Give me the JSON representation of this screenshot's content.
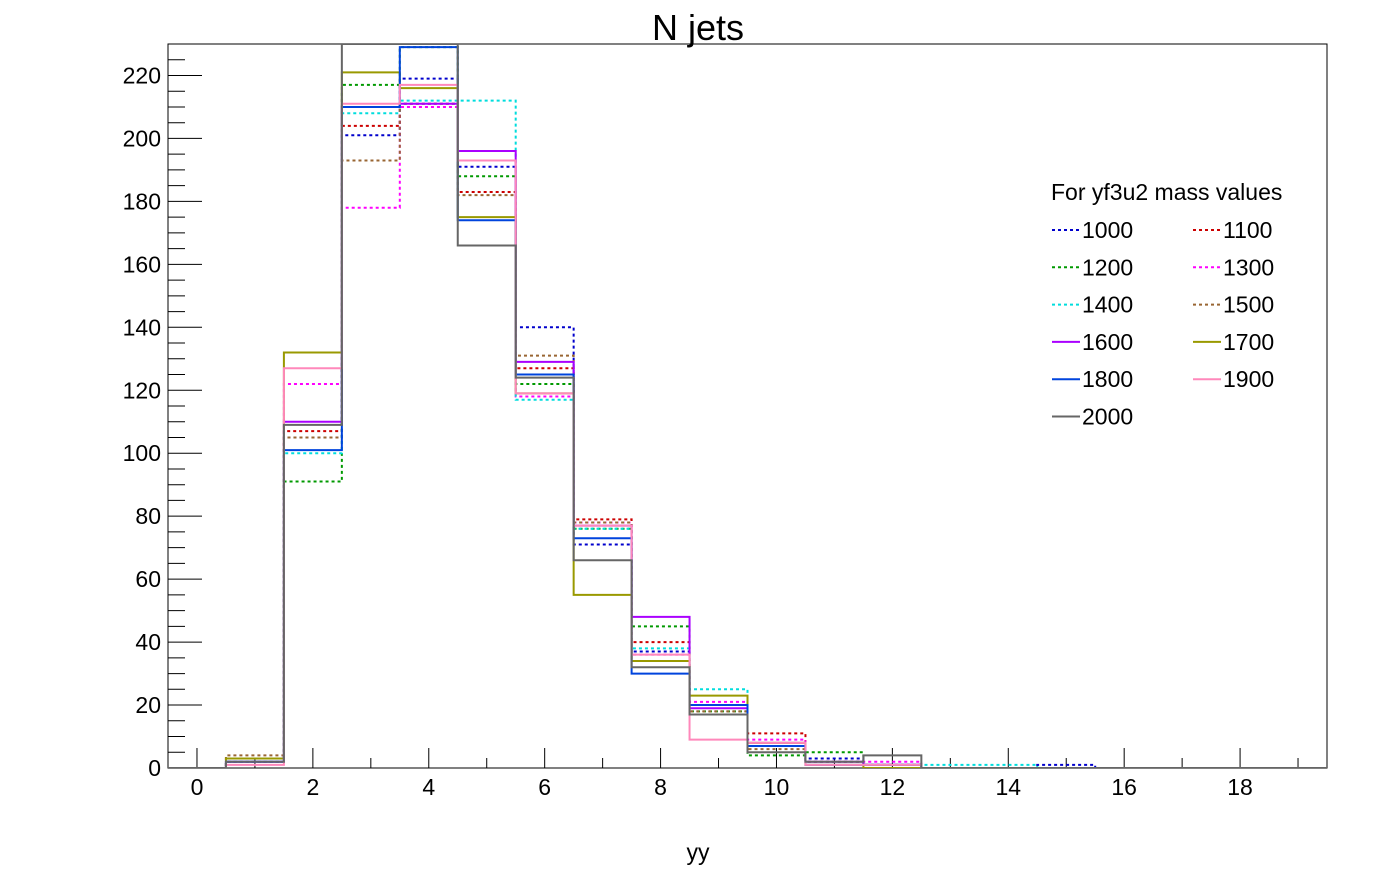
{
  "chart_data": {
    "type": "histogram-step",
    "title": "N jets",
    "xlabel": "yy",
    "ylabel": "",
    "xlim": [
      -0.5,
      19.5
    ],
    "ylim": [
      0,
      230
    ],
    "xticks": [
      0,
      2,
      4,
      6,
      8,
      10,
      12,
      14,
      16,
      18
    ],
    "yticks": [
      0,
      20,
      40,
      60,
      80,
      100,
      120,
      140,
      160,
      180,
      200,
      220
    ],
    "bin_centers": [
      0,
      1,
      2,
      3,
      4,
      5,
      6,
      7,
      8,
      9,
      10,
      11,
      12,
      13,
      14,
      15,
      16,
      17,
      18,
      19
    ],
    "legend": {
      "header": "For yf3u2 mass values",
      "placement": "top-right",
      "columns": 2
    },
    "series": [
      {
        "name": "1000",
        "color": "#0000cc",
        "dashed": true,
        "values": [
          0,
          2,
          105,
          201,
          219,
          191,
          140,
          71,
          37,
          20,
          7,
          3,
          1,
          0,
          0,
          1,
          0,
          0,
          0,
          0
        ]
      },
      {
        "name": "1100",
        "color": "#cc0000",
        "dashed": true,
        "values": [
          0,
          3,
          107,
          204,
          211,
          183,
          127,
          79,
          40,
          17,
          11,
          2,
          1,
          0,
          0,
          0,
          0,
          0,
          0,
          0
        ]
      },
      {
        "name": "1200",
        "color": "#009900",
        "dashed": true,
        "values": [
          0,
          2,
          91,
          217,
          229,
          188,
          122,
          76,
          45,
          18,
          4,
          5,
          1,
          0,
          0,
          0,
          0,
          0,
          0,
          0
        ]
      },
      {
        "name": "1300",
        "color": "#ff00ff",
        "dashed": true,
        "values": [
          0,
          2,
          122,
          178,
          210,
          193,
          118,
          78,
          36,
          21,
          9,
          2,
          2,
          0,
          0,
          0,
          0,
          0,
          0,
          0
        ]
      },
      {
        "name": "1400",
        "color": "#00dddd",
        "dashed": true,
        "values": [
          0,
          2,
          100,
          208,
          212,
          212,
          117,
          76,
          38,
          25,
          7,
          2,
          1,
          1,
          1,
          0,
          0,
          0,
          0,
          0
        ]
      },
      {
        "name": "1500",
        "color": "#996633",
        "dashed": true,
        "values": [
          0,
          4,
          105,
          193,
          211,
          182,
          131,
          78,
          34,
          18,
          6,
          2,
          1,
          0,
          0,
          0,
          0,
          0,
          0,
          0
        ]
      },
      {
        "name": "1600",
        "color": "#aa00ff",
        "dashed": false,
        "values": [
          0,
          2,
          110,
          210,
          211,
          196,
          129,
          77,
          48,
          19,
          8,
          2,
          1,
          0,
          0,
          0,
          0,
          0,
          0,
          0
        ]
      },
      {
        "name": "1700",
        "color": "#999900",
        "dashed": false,
        "values": [
          0,
          3,
          132,
          221,
          216,
          175,
          119,
          55,
          34,
          23,
          8,
          1,
          0,
          0,
          0,
          0,
          0,
          0,
          0,
          0
        ]
      },
      {
        "name": "1800",
        "color": "#0044dd",
        "dashed": false,
        "values": [
          0,
          2,
          101,
          210,
          229,
          174,
          125,
          73,
          30,
          20,
          7,
          1,
          1,
          0,
          0,
          0,
          0,
          0,
          0,
          0
        ]
      },
      {
        "name": "1900",
        "color": "#ff88bb",
        "dashed": false,
        "values": [
          0,
          1,
          127,
          211,
          217,
          193,
          119,
          77,
          36,
          9,
          8,
          1,
          1,
          0,
          0,
          0,
          0,
          0,
          0,
          0
        ]
      },
      {
        "name": "2000",
        "color": "#666666",
        "dashed": false,
        "values": [
          0,
          2,
          109,
          230,
          230,
          166,
          124,
          66,
          32,
          17,
          5,
          2,
          4,
          0,
          0,
          0,
          0,
          0,
          0,
          0
        ]
      }
    ]
  }
}
